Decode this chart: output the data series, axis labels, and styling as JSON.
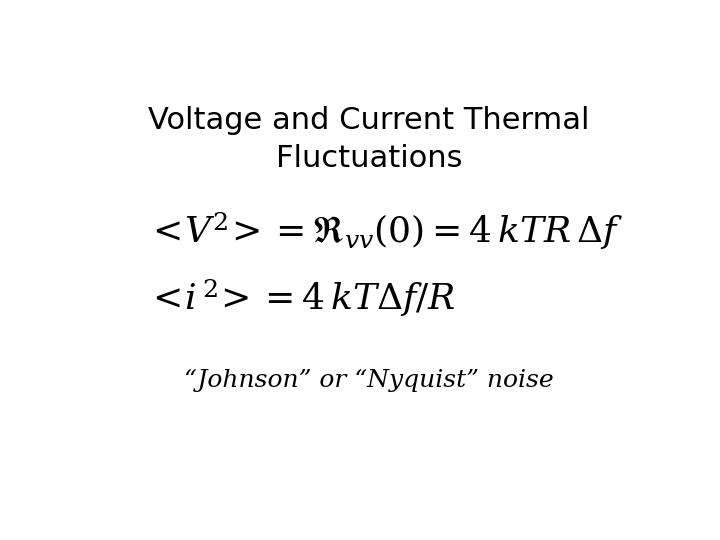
{
  "title_line1": "Voltage and Current Thermal",
  "title_line2": "Fluctuations",
  "eq1": "$<\\!V^{2}\\!> = \\mathfrak{R}_{vv}(0) = 4\\,kTR\\,\\Delta f$",
  "eq2": "$<\\!i^{\\,2}\\!> = 4\\,kT\\Delta f/R$",
  "subtitle": "“Johnson” or “Nyquist” noise",
  "bg_color": "#ffffff",
  "text_color": "#000000",
  "title_fontsize": 22,
  "eq_fontsize": 26,
  "subtitle_fontsize": 18
}
